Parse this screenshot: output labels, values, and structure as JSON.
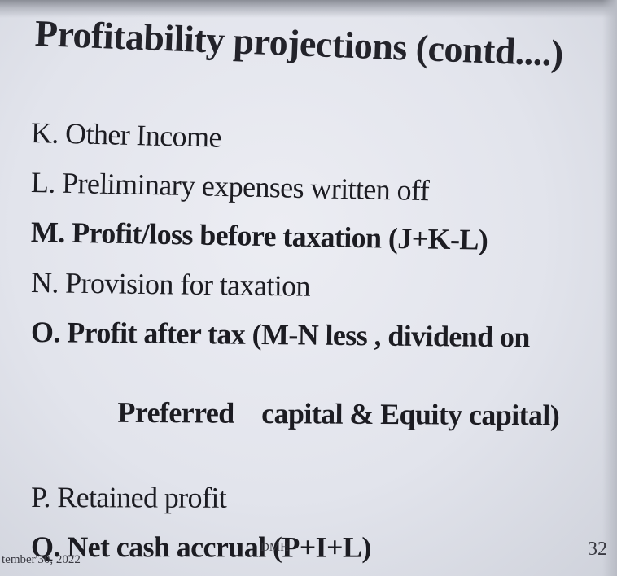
{
  "slide": {
    "title": "Profitability projections (contd....)",
    "items": [
      {
        "letter": "K.",
        "text": "Other Income",
        "bold": false
      },
      {
        "letter": "L.",
        "text": "Preliminary expenses written off",
        "bold": false
      },
      {
        "letter": "M.",
        "text": "Profit/loss before taxation (J+K-L)",
        "bold": true
      },
      {
        "letter": "N.",
        "text": "Provision for taxation",
        "bold": false
      },
      {
        "letter": "O.",
        "text": "Profit after tax (M-N less , dividend on",
        "bold": true
      },
      {
        "letter": "",
        "text": "Preferred    capital & Equity capital)",
        "bold": true,
        "continuation": true
      },
      {
        "letter": "P.",
        "text": "Retained profit",
        "bold": false
      },
      {
        "letter": "Q.",
        "text": "Net cash accrual (P+I+L)",
        "bold": true
      }
    ],
    "footer": {
      "date": "tember'30, 2022",
      "author": "DMH",
      "page_number": "32"
    }
  }
}
